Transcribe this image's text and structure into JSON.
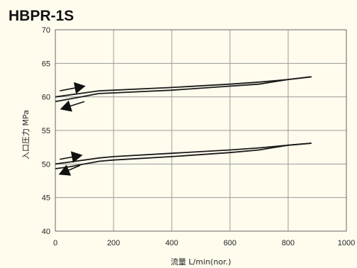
{
  "chart_data": {
    "type": "line",
    "title": "HBPR-1S",
    "xlabel": "流量  L/min(nor.)",
    "ylabel": "入口圧力 MPa",
    "xlim": [
      0,
      1000
    ],
    "ylim": [
      40,
      70
    ],
    "xticks": [
      0,
      200,
      400,
      600,
      800,
      1000
    ],
    "yticks": [
      40,
      45,
      50,
      55,
      60,
      65,
      70
    ],
    "grid": true,
    "series": [
      {
        "x": [
          0,
          50,
          100,
          150,
          200,
          400,
          600,
          700,
          800,
          880
        ],
        "y": [
          60.0,
          60.3,
          60.6,
          60.9,
          61.0,
          61.4,
          61.9,
          62.2,
          62.6,
          63.0
        ]
      },
      {
        "x": [
          0,
          50,
          100,
          150,
          200,
          400,
          600,
          700,
          800,
          880
        ],
        "y": [
          59.3,
          59.7,
          60.1,
          60.5,
          60.6,
          61.0,
          61.6,
          61.9,
          62.6,
          63.0
        ]
      },
      {
        "x": [
          0,
          50,
          100,
          150,
          200,
          400,
          600,
          700,
          800,
          880
        ],
        "y": [
          50.0,
          50.3,
          50.6,
          50.9,
          51.1,
          51.6,
          52.1,
          52.4,
          52.8,
          53.1
        ]
      },
      {
        "x": [
          0,
          50,
          100,
          150,
          200,
          400,
          600,
          700,
          800,
          880
        ],
        "y": [
          49.3,
          49.6,
          50.0,
          50.4,
          50.6,
          51.1,
          51.7,
          52.1,
          52.8,
          53.1
        ]
      }
    ],
    "annotations": [
      {
        "kind": "arrow-right",
        "x": [
          15,
          100
        ],
        "y": [
          60.9,
          61.6
        ]
      },
      {
        "kind": "arrow-left",
        "x": [
          100,
          20
        ],
        "y": [
          59.3,
          58.2
        ]
      },
      {
        "kind": "arrow-right",
        "x": [
          15,
          90
        ],
        "y": [
          50.7,
          51.3
        ]
      },
      {
        "kind": "arrow-left",
        "x": [
          85,
          15
        ],
        "y": [
          49.8,
          48.5
        ]
      }
    ]
  }
}
